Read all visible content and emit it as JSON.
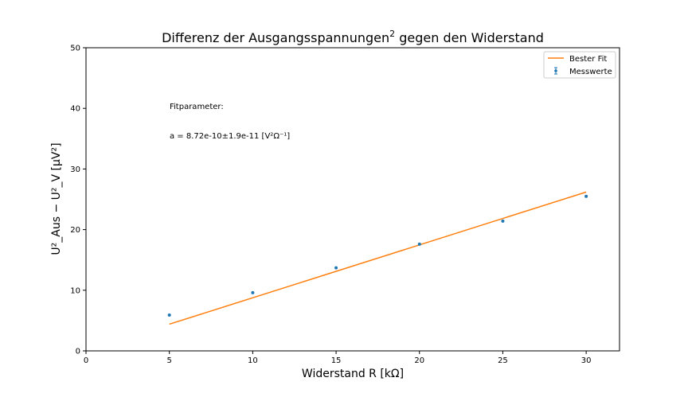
{
  "chart_data": {
    "type": "scatter",
    "title": "Differenz der Ausgangsspannungen",
    "title_sup": "2",
    "title_rest": " gegen den Widerstand",
    "xlabel": "Widerstand R [kΩ]",
    "ylabel": "U²_Aus − U²_V [µV²]",
    "xlim": [
      0,
      32
    ],
    "ylim": [
      0,
      50
    ],
    "xticks": [
      0,
      5,
      10,
      15,
      20,
      25,
      30
    ],
    "yticks": [
      0,
      10,
      20,
      30,
      40,
      50
    ],
    "grid": false,
    "legend_position": "upper-right",
    "series": [
      {
        "name": "Messwerte",
        "kind": "scatter-errorbar",
        "color": "#1f77b4",
        "x": [
          5,
          10,
          15,
          20,
          25,
          30
        ],
        "y": [
          5.9,
          9.6,
          13.7,
          17.6,
          21.4,
          25.5
        ]
      },
      {
        "name": "Bester Fit",
        "kind": "line",
        "color": "#ff7f0e",
        "x": [
          5,
          30
        ],
        "y": [
          4.4,
          26.2
        ]
      }
    ],
    "annotations": {
      "fit_heading": "Fitparameter:",
      "fit_value": "a = 8.72e-10±1.9e-11 [V²Ω⁻¹]"
    }
  }
}
